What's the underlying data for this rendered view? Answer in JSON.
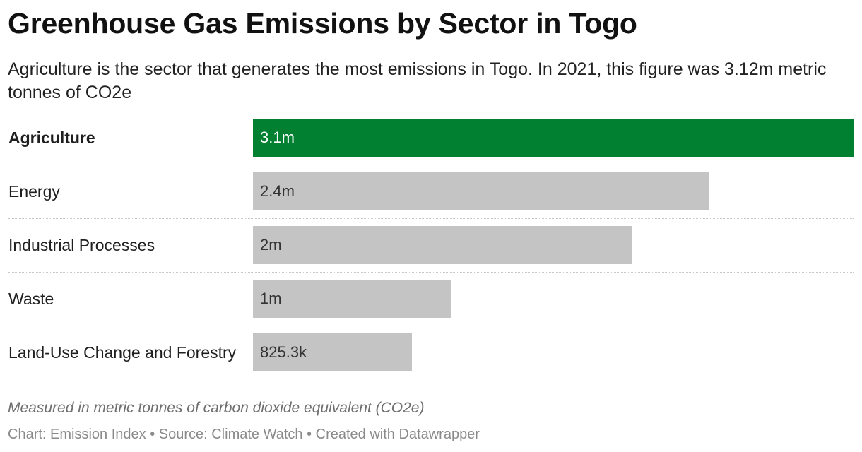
{
  "title": "Greenhouse Gas Emissions by Sector in Togo",
  "subtitle": "Agriculture is the sector that generates the most emissions in Togo. In 2021, this figure was 3.12m metric tonnes of CO2e",
  "note": "Measured in metric tonnes of carbon dioxide equivalent (CO2e)",
  "footer": "Chart: Emission Index • Source: Climate Watch • Created with Datawrapper",
  "colors": {
    "highlight": "#008030",
    "default": "#c4c4c4",
    "highlight_text": "#ffffff",
    "default_text": "#333333"
  },
  "chart_data": {
    "type": "bar",
    "orientation": "horizontal",
    "categories": [
      "Agriculture",
      "Energy",
      "Industrial Processes",
      "Waste",
      "Land-Use Change and Forestry"
    ],
    "values": [
      3120000,
      2370000,
      1970000,
      1030000,
      825300
    ],
    "value_labels": [
      "3.1m",
      "2.4m",
      "2m",
      "1m",
      "825.3k"
    ],
    "highlight_index": 0,
    "xlim": [
      0,
      3120000
    ],
    "grid": false,
    "legend": "none"
  }
}
